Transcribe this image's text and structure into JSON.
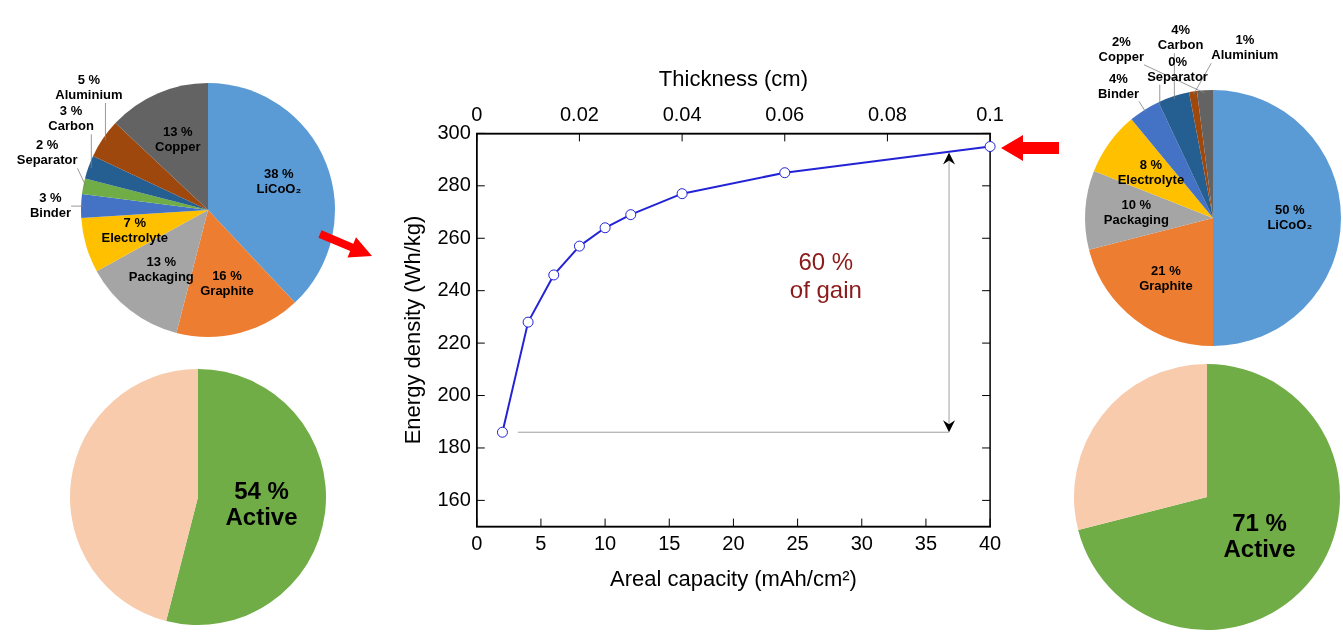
{
  "chart_data": [
    {
      "type": "pie",
      "categories": [
        "LiCoO₂",
        "Graphite",
        "Packaging",
        "Electrolyte",
        "Binder",
        "Separator",
        "Carbon",
        "Aluminium",
        "Copper"
      ],
      "values": [
        38,
        16,
        13,
        7,
        3,
        2,
        3,
        5,
        13
      ],
      "value_labels": [
        "38 %",
        "16 %",
        "13 %",
        "7 %",
        "3 %",
        "2 %",
        "3 %",
        "5 %",
        "13 %"
      ],
      "colors": [
        "#5b9bd5",
        "#ed7d31",
        "#a5a5a5",
        "#ffc000",
        "#4472c4",
        "#70ad47",
        "#255e91",
        "#9e480e",
        "#636363"
      ]
    },
    {
      "type": "line",
      "x": [
        2,
        4,
        6,
        8,
        10,
        12,
        16,
        24,
        40
      ],
      "values": [
        186,
        228,
        246,
        257,
        264,
        269,
        277,
        285,
        295
      ],
      "color": "#2323d6",
      "marker": "circle",
      "xlabel": "Areal capacity (mAh/cm²)",
      "ylabel": "Energy density (Wh/kg)",
      "x2label": "Thickness (cm)",
      "xlim": [
        0,
        40
      ],
      "xticks": [
        0,
        5,
        10,
        15,
        20,
        25,
        30,
        35,
        40
      ],
      "ylim": [
        150,
        300
      ],
      "yticks": [
        160,
        180,
        200,
        220,
        240,
        260,
        280,
        300
      ],
      "x2lim": [
        0,
        0.1
      ],
      "x2ticks": [
        0,
        0.02,
        0.04,
        0.06,
        0.08,
        0.1
      ],
      "ref_lines": [
        {
          "axis": "y",
          "value": 186,
          "color": "#a0a0a0"
        }
      ],
      "annotations": [
        "60 %\nof gain"
      ]
    },
    {
      "type": "pie",
      "categories": [
        "LiCoO₂",
        "Graphite",
        "Packaging",
        "Electrolyte",
        "Binder",
        "Separator",
        "Carbon",
        "Aluminium",
        "Copper"
      ],
      "values": [
        50,
        21,
        10,
        8,
        4,
        0,
        4,
        1,
        2
      ],
      "value_labels": [
        "50 %",
        "21 %",
        "10 %",
        "8 %",
        "4%",
        "0%",
        "4%",
        "1%",
        "2%"
      ],
      "colors": [
        "#5b9bd5",
        "#ed7d31",
        "#a5a5a5",
        "#ffc000",
        "#4472c4",
        "#70ad47",
        "#255e91",
        "#9e480e",
        "#636363"
      ]
    },
    {
      "type": "pie",
      "categories": [
        "Active",
        null
      ],
      "values": [
        54,
        46
      ],
      "value_labels": [
        "54 %",
        null
      ],
      "colors": [
        "#70ad47",
        "#f8cbad"
      ]
    },
    {
      "type": "pie",
      "categories": [
        "Active",
        null
      ],
      "values": [
        71,
        29
      ],
      "value_labels": [
        "71 %",
        null
      ],
      "colors": [
        "#70ad47",
        "#f8cbad"
      ]
    }
  ]
}
